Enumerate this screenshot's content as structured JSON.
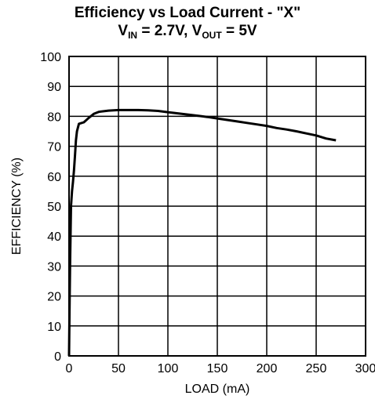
{
  "chart_data": {
    "type": "line",
    "title_main": "Efficiency vs Load Current - \"X\"",
    "title_vin_label": "V",
    "title_vin_sub": "IN",
    "title_vin_value": " = 2.7V, ",
    "title_vout_label": "V",
    "title_vout_sub": "OUT",
    "title_vout_value": " = 5V",
    "xlabel": "LOAD (mA)",
    "ylabel": "EFFICIENCY (%)",
    "xlim": [
      0,
      300
    ],
    "ylim": [
      0,
      100
    ],
    "xticks": [
      0,
      50,
      100,
      150,
      200,
      250,
      300
    ],
    "yticks": [
      0,
      10,
      20,
      30,
      40,
      50,
      60,
      70,
      80,
      90,
      100
    ],
    "grid": true,
    "series": [
      {
        "x": [
          0,
          0.5,
          1,
          2,
          3,
          4,
          5,
          6,
          7,
          8,
          10,
          15,
          20,
          25,
          30,
          40,
          50,
          60,
          70,
          80,
          90,
          100,
          110,
          120,
          130,
          140,
          150,
          160,
          170,
          180,
          190,
          200,
          210,
          220,
          230,
          240,
          250,
          260,
          270
        ],
        "y": [
          0,
          15,
          30,
          50,
          55,
          58,
          62,
          67,
          72,
          75,
          77.5,
          78,
          79.5,
          80.8,
          81.5,
          81.9,
          82.1,
          82.1,
          82.1,
          82.0,
          81.8,
          81.4,
          81.0,
          80.6,
          80.2,
          79.8,
          79.3,
          78.8,
          78.3,
          77.8,
          77.3,
          76.8,
          76.1,
          75.6,
          75.0,
          74.3,
          73.6,
          72.6,
          72.0
        ]
      }
    ]
  }
}
